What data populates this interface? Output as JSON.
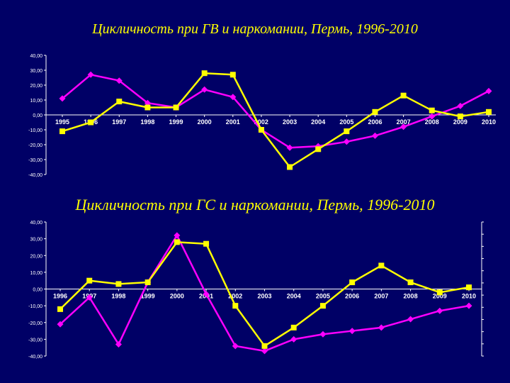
{
  "chart_data": [
    {
      "type": "line",
      "title": "Цикличность при ГВ и наркомании, Пермь, 1996-2010",
      "x": [
        "1995",
        "1996",
        "1997",
        "1998",
        "1999",
        "2000",
        "2001",
        "2002",
        "2003",
        "2004",
        "2005",
        "2006",
        "2007",
        "2008",
        "2009",
        "2010"
      ],
      "y_ticks": [
        "40,00",
        "30,00",
        "20,00",
        "10,00",
        "0,00",
        "-10,00",
        "-20,00",
        "-30,00",
        "-40,00"
      ],
      "ylim": [
        -40,
        40
      ],
      "series": [
        {
          "color": "#FF00FF",
          "marker": "diamond",
          "values": [
            11,
            27,
            23,
            8,
            5,
            17,
            12,
            -10,
            -22,
            -21,
            -18,
            -14,
            -8,
            -1,
            6,
            16
          ]
        },
        {
          "color": "#FFFF00",
          "marker": "square",
          "values": [
            -11,
            -5,
            9,
            5,
            5,
            28,
            27,
            -10,
            -35,
            -23,
            -11,
            2,
            13,
            3,
            -1,
            2
          ]
        }
      ]
    },
    {
      "type": "line",
      "title": "Цикличность при ГС и наркомании, Пермь, 1996-2010",
      "x": [
        "1996",
        "1997",
        "1998",
        "1999",
        "2000",
        "2001",
        "2002",
        "2003",
        "2004",
        "2005",
        "2006",
        "2007",
        "2008",
        "2009",
        "2010"
      ],
      "y_ticks": [
        "40,00",
        "30,00",
        "20,00",
        "10,00",
        "0,00",
        "-10,00",
        "-20,00",
        "-30,00",
        "-40,00"
      ],
      "ylim": [
        -40,
        40
      ],
      "series": [
        {
          "color": "#FF00FF",
          "marker": "diamond",
          "values": [
            -21,
            -5,
            -33,
            4,
            32,
            -3,
            -34,
            -37,
            -30,
            -27,
            -25,
            -23,
            -18,
            -13,
            -10
          ]
        },
        {
          "color": "#FFFF00",
          "marker": "square",
          "values": [
            -12,
            5,
            3,
            4,
            28,
            27,
            -10,
            -34,
            -23,
            -10,
            4,
            14,
            4,
            -2,
            1
          ]
        }
      ]
    }
  ]
}
